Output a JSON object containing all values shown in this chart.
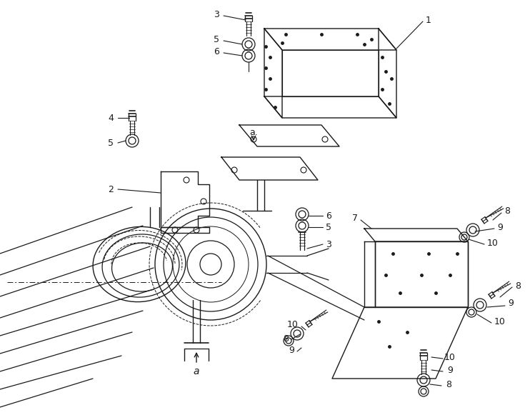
{
  "bg_color": "#ffffff",
  "line_color": "#1a1a1a",
  "label_color": "#000000",
  "fig_width": 7.42,
  "fig_height": 5.88,
  "dpi": 100
}
